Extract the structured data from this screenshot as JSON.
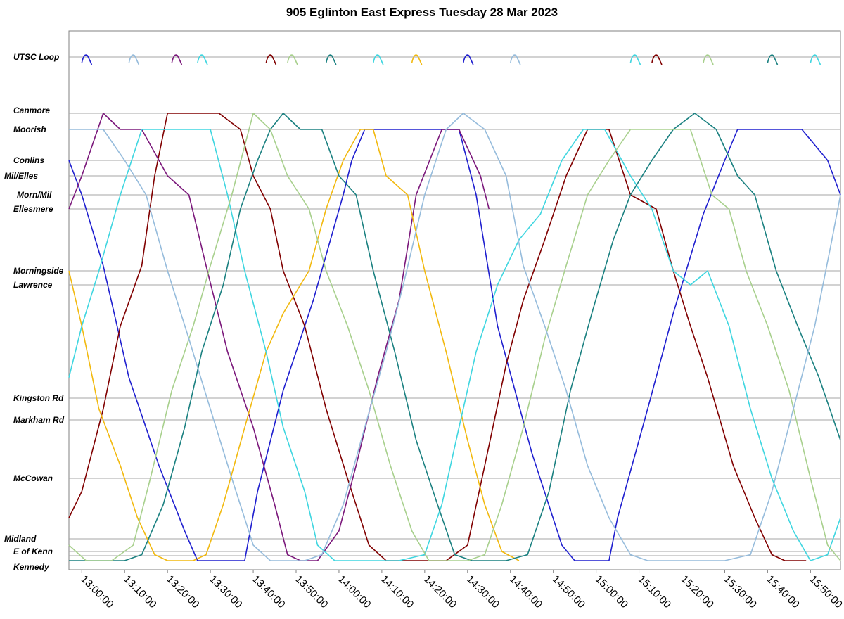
{
  "chart_data": {
    "type": "line",
    "title": "905 Eglinton East Express Tuesday 28 Mar 2023",
    "xlabel": "",
    "ylabel": "",
    "xlim": [
      "12:57:00",
      "15:57:00"
    ],
    "x_ticks": [
      "13:00:00",
      "13:10:00",
      "13:20:00",
      "13:30:00",
      "13:40:00",
      "13:50:00",
      "14:00:00",
      "14:10:00",
      "14:20:00",
      "14:30:00",
      "14:40:00",
      "14:50:00",
      "15:00:00",
      "15:10:00",
      "15:20:00",
      "15:30:00",
      "15:40:00",
      "15:50:00"
    ],
    "stops": [
      {
        "name": "UTSC Loop",
        "km": 15.6
      },
      {
        "name": "Canmore",
        "km": 13.9
      },
      {
        "name": "Moorish",
        "km": 13.6
      },
      {
        "name": "Conlins",
        "km": 13.0
      },
      {
        "name": "Mil/Elles",
        "km": 12.8
      },
      {
        "name": "Morn/Mil",
        "km": 12.4
      },
      {
        "name": "Ellesmere",
        "km": 12.1
      },
      {
        "name": "Morningside",
        "km": 10.9
      },
      {
        "name": "Lawrence",
        "km": 10.6
      },
      {
        "name": "Kingston Rd",
        "km": 6.2
      },
      {
        "name": "Markham Rd",
        "km": 5.8
      },
      {
        "name": "McCowan",
        "km": 3.5
      },
      {
        "name": "Midland",
        "km": 1.2
      },
      {
        "name": "E of Kenn",
        "km": 0.8
      },
      {
        "name": "Kennedy",
        "km": 0.4
      }
    ],
    "grid": true,
    "legend": "none",
    "series": [
      {
        "color": "#1f1fcf",
        "points": [
          [
            "12:57",
            "13.0"
          ],
          [
            "13:00",
            "12.4"
          ],
          [
            "13:05",
            "11.0"
          ],
          [
            "13:11",
            "7.0"
          ],
          [
            "13:18",
            "4.0"
          ],
          [
            "13:24",
            "1.5"
          ],
          [
            "13:27",
            "0.0"
          ],
          [
            "13:31",
            "0.0"
          ],
          [
            "13:38",
            "0.0"
          ],
          [
            "13:41",
            "3.0"
          ],
          [
            "13:47",
            "6.5"
          ],
          [
            "13:54",
            "10.0"
          ],
          [
            "14:01",
            "12.4"
          ],
          [
            "14:03",
            "13.0"
          ],
          [
            "14:06",
            "13.6"
          ],
          [
            "14:13",
            "13.6"
          ],
          [
            "14:18",
            "13.6"
          ],
          [
            "14:28",
            "13.6"
          ],
          [
            "14:32",
            "12.4"
          ],
          [
            "14:37",
            "9.0"
          ],
          [
            "14:45",
            "4.5"
          ],
          [
            "14:52",
            "1.0"
          ],
          [
            "14:55",
            "0.0"
          ],
          [
            "15:03",
            "0.0"
          ],
          [
            "15:05",
            "2.0"
          ],
          [
            "15:12",
            "6.0"
          ],
          [
            "15:18",
            "9.5"
          ],
          [
            "15:25",
            "12.0"
          ],
          [
            "15:30",
            "13.0"
          ],
          [
            "15:33",
            "13.6"
          ],
          [
            "15:40",
            "13.6"
          ],
          [
            "15:48",
            "13.6"
          ],
          [
            "15:54",
            "13.0"
          ],
          [
            "15:57",
            "12.4"
          ]
        ]
      },
      {
        "color": "#800000",
        "points": [
          [
            "12:57",
            "2.0"
          ],
          [
            "13:00",
            "3.0"
          ],
          [
            "13:05",
            "6.0"
          ],
          [
            "13:09",
            "9.0"
          ],
          [
            "13:14",
            "11.0"
          ],
          [
            "13:17",
            "12.8"
          ],
          [
            "13:20",
            "13.9"
          ],
          [
            "13:25",
            "13.9"
          ],
          [
            "13:32",
            "13.9"
          ],
          [
            "13:37",
            "13.6"
          ],
          [
            "13:40",
            "12.8"
          ],
          [
            "13:44",
            "12.1"
          ],
          [
            "13:47",
            "10.9"
          ],
          [
            "13:52",
            "9.0"
          ],
          [
            "13:57",
            "6.0"
          ],
          [
            "14:02",
            "3.5"
          ],
          [
            "14:07",
            "1.0"
          ],
          [
            "14:11",
            "0.0"
          ],
          [
            "14:19",
            "0.0"
          ],
          [
            "14:25",
            "0.0"
          ],
          [
            "14:30",
            "1.0"
          ],
          [
            "14:34",
            "4.0"
          ],
          [
            "14:39",
            "7.5"
          ],
          [
            "14:43",
            "10.0"
          ],
          [
            "14:48",
            "11.5"
          ],
          [
            "14:53",
            "12.8"
          ],
          [
            "14:58",
            "13.6"
          ],
          [
            "15:03",
            "13.6"
          ],
          [
            "15:08",
            "12.4"
          ],
          [
            "15:14",
            "12.1"
          ],
          [
            "15:18",
            "10.9"
          ],
          [
            "15:22",
            "9.0"
          ],
          [
            "15:26",
            "7.0"
          ],
          [
            "15:32",
            "4.0"
          ],
          [
            "15:37",
            "2.0"
          ],
          [
            "15:41",
            "0.5"
          ],
          [
            "15:44",
            "0.0"
          ],
          [
            "15:49",
            "0.0"
          ]
        ]
      },
      {
        "color": "#7b187b",
        "points": [
          [
            "12:57",
            "12.1"
          ],
          [
            "13:00",
            "12.8"
          ],
          [
            "13:05",
            "13.9"
          ],
          [
            "13:09",
            "13.6"
          ],
          [
            "13:14",
            "13.6"
          ],
          [
            "13:20",
            "12.8"
          ],
          [
            "13:25",
            "12.4"
          ],
          [
            "13:29",
            "11.0"
          ],
          [
            "13:34",
            "8.0"
          ],
          [
            "13:40",
            "5.5"
          ],
          [
            "13:45",
            "2.5"
          ],
          [
            "13:48",
            "0.5"
          ],
          [
            "13:51",
            "0.0"
          ],
          [
            "13:55",
            "0.0"
          ],
          [
            "14:00",
            "1.5"
          ],
          [
            "14:04",
            "4.0"
          ],
          [
            "14:09",
            "7.0"
          ],
          [
            "14:14",
            "10.0"
          ],
          [
            "14:18",
            "12.4"
          ],
          [
            "14:24",
            "13.6"
          ],
          [
            "14:28",
            "13.6"
          ],
          [
            "14:33",
            "12.8"
          ],
          [
            "14:35",
            "12.1"
          ]
        ]
      },
      {
        "color": "#f2b90f",
        "points": [
          [
            "12:57",
            "10.9"
          ],
          [
            "13:00",
            "9.0"
          ],
          [
            "13:04",
            "6.0"
          ],
          [
            "13:09",
            "4.0"
          ],
          [
            "13:13",
            "2.0"
          ],
          [
            "13:17",
            "0.5"
          ],
          [
            "13:20",
            "0.0"
          ],
          [
            "13:26",
            "0.0"
          ],
          [
            "13:29",
            "0.5"
          ],
          [
            "13:33",
            "2.5"
          ],
          [
            "13:38",
            "5.5"
          ],
          [
            "13:43",
            "8.0"
          ],
          [
            "13:47",
            "9.5"
          ],
          [
            "13:53",
            "10.9"
          ],
          [
            "13:57",
            "12.1"
          ],
          [
            "14:01",
            "13.0"
          ],
          [
            "14:05",
            "13.6"
          ],
          [
            "14:08",
            "13.6"
          ],
          [
            "14:11",
            "12.8"
          ],
          [
            "14:16",
            "12.4"
          ],
          [
            "14:20",
            "10.9"
          ],
          [
            "14:25",
            "8.0"
          ],
          [
            "14:30",
            "5.0"
          ],
          [
            "14:34",
            "2.5"
          ],
          [
            "14:38",
            "0.8"
          ],
          [
            "14:42",
            "0.0"
          ]
        ]
      },
      {
        "color": "#3fd6e0",
        "points": [
          [
            "12:57",
            "7.0"
          ],
          [
            "13:00",
            "9.0"
          ],
          [
            "13:04",
            "10.9"
          ],
          [
            "13:09",
            "12.4"
          ],
          [
            "13:14",
            "13.6"
          ],
          [
            "13:20",
            "13.6"
          ],
          [
            "13:25",
            "13.6"
          ],
          [
            "13:30",
            "13.6"
          ],
          [
            "13:34",
            "12.4"
          ],
          [
            "13:38",
            "10.9"
          ],
          [
            "13:43",
            "8.0"
          ],
          [
            "13:47",
            "5.5"
          ],
          [
            "13:52",
            "3.0"
          ],
          [
            "13:55",
            "1.0"
          ],
          [
            "13:59",
            "0.0"
          ],
          [
            "14:06",
            "0.0"
          ],
          [
            "14:14",
            "0.0"
          ],
          [
            "14:20",
            "0.5"
          ],
          [
            "14:24",
            "2.5"
          ],
          [
            "14:28",
            "5.5"
          ],
          [
            "14:32",
            "8.0"
          ],
          [
            "14:37",
            "10.6"
          ],
          [
            "14:42",
            "11.5"
          ],
          [
            "14:47",
            "12.0"
          ],
          [
            "14:52",
            "13.0"
          ],
          [
            "14:57",
            "13.6"
          ],
          [
            "15:02",
            "13.6"
          ],
          [
            "15:08",
            "12.8"
          ],
          [
            "15:13",
            "12.1"
          ],
          [
            "15:18",
            "10.9"
          ],
          [
            "15:22",
            "10.6"
          ],
          [
            "15:26",
            "10.9"
          ],
          [
            "15:31",
            "9.0"
          ],
          [
            "15:36",
            "6.0"
          ],
          [
            "15:41",
            "3.5"
          ],
          [
            "15:46",
            "1.5"
          ],
          [
            "15:50",
            "0.0"
          ],
          [
            "15:54",
            "0.5"
          ],
          [
            "15:57",
            "2.0"
          ]
        ]
      },
      {
        "color": "#1a8080",
        "points": [
          [
            "12:57",
            "0.0"
          ],
          [
            "13:01",
            "0.0"
          ],
          [
            "13:05",
            "0.0"
          ],
          [
            "13:10",
            "0.0"
          ],
          [
            "13:14",
            "0.5"
          ],
          [
            "13:19",
            "2.5"
          ],
          [
            "13:24",
            "5.5"
          ],
          [
            "13:28",
            "8.0"
          ],
          [
            "13:33",
            "10.6"
          ],
          [
            "13:37",
            "12.1"
          ],
          [
            "13:41",
            "13.0"
          ],
          [
            "13:44",
            "13.6"
          ],
          [
            "13:47",
            "13.9"
          ],
          [
            "13:51",
            "13.6"
          ],
          [
            "13:56",
            "13.6"
          ],
          [
            "14:00",
            "12.8"
          ],
          [
            "14:04",
            "12.4"
          ],
          [
            "14:08",
            "10.9"
          ],
          [
            "14:13",
            "8.0"
          ],
          [
            "14:18",
            "5.0"
          ],
          [
            "14:23",
            "2.5"
          ],
          [
            "14:27",
            "0.5"
          ],
          [
            "14:31",
            "0.0"
          ],
          [
            "14:39",
            "0.0"
          ],
          [
            "14:44",
            "0.5"
          ],
          [
            "14:49",
            "3.0"
          ],
          [
            "14:54",
            "6.5"
          ],
          [
            "14:59",
            "9.5"
          ],
          [
            "15:04",
            "11.5"
          ],
          [
            "15:08",
            "12.4"
          ],
          [
            "15:13",
            "13.0"
          ],
          [
            "15:18",
            "13.6"
          ],
          [
            "15:23",
            "13.9"
          ],
          [
            "15:28",
            "13.6"
          ],
          [
            "15:33",
            "12.8"
          ],
          [
            "15:37",
            "12.4"
          ],
          [
            "15:42",
            "10.9"
          ],
          [
            "15:47",
            "9.0"
          ],
          [
            "15:52",
            "7.0"
          ],
          [
            "15:57",
            "5.0"
          ]
        ]
      },
      {
        "color": "#a8d08d",
        "points": [
          [
            "12:57",
            "1.0"
          ],
          [
            "13:01",
            "0.0"
          ],
          [
            "13:07",
            "0.0"
          ],
          [
            "13:12",
            "1.0"
          ],
          [
            "13:16",
            "3.5"
          ],
          [
            "13:21",
            "6.5"
          ],
          [
            "13:26",
            "9.0"
          ],
          [
            "13:30",
            "11.0"
          ],
          [
            "13:35",
            "12.4"
          ],
          [
            "13:40",
            "13.9"
          ],
          [
            "13:44",
            "13.6"
          ],
          [
            "13:48",
            "12.8"
          ],
          [
            "13:53",
            "12.1"
          ],
          [
            "13:57",
            "10.9"
          ],
          [
            "14:02",
            "9.0"
          ],
          [
            "14:07",
            "6.5"
          ],
          [
            "14:12",
            "4.0"
          ],
          [
            "14:17",
            "1.5"
          ],
          [
            "14:21",
            "0.0"
          ],
          [
            "14:30",
            "0.0"
          ],
          [
            "14:34",
            "0.5"
          ],
          [
            "14:38",
            "2.5"
          ],
          [
            "14:43",
            "5.5"
          ],
          [
            "14:48",
            "8.5"
          ],
          [
            "14:53",
            "11.0"
          ],
          [
            "14:58",
            "12.4"
          ],
          [
            "15:03",
            "13.0"
          ],
          [
            "15:08",
            "13.6"
          ],
          [
            "15:15",
            "13.6"
          ],
          [
            "15:22",
            "13.6"
          ],
          [
            "15:27",
            "12.4"
          ],
          [
            "15:31",
            "12.1"
          ],
          [
            "15:35",
            "10.9"
          ],
          [
            "15:40",
            "9.0"
          ],
          [
            "15:45",
            "6.5"
          ],
          [
            "15:50",
            "3.5"
          ],
          [
            "15:54",
            "1.0"
          ],
          [
            "15:57",
            "0.0"
          ]
        ]
      },
      {
        "color": "#96bcdc",
        "points": [
          [
            "12:57",
            "13.6"
          ],
          [
            "13:01",
            "13.6"
          ],
          [
            "13:05",
            "13.6"
          ],
          [
            "13:10",
            "13.0"
          ],
          [
            "13:15",
            "12.4"
          ],
          [
            "13:20",
            "10.9"
          ],
          [
            "13:25",
            "8.5"
          ],
          [
            "13:30",
            "6.0"
          ],
          [
            "13:35",
            "3.5"
          ],
          [
            "13:40",
            "1.0"
          ],
          [
            "13:44",
            "0.0"
          ],
          [
            "13:52",
            "0.0"
          ],
          [
            "13:56",
            "0.5"
          ],
          [
            "14:01",
            "2.5"
          ],
          [
            "14:06",
            "5.5"
          ],
          [
            "14:11",
            "8.0"
          ],
          [
            "14:15",
            "10.6"
          ],
          [
            "14:20",
            "12.4"
          ],
          [
            "14:25",
            "13.6"
          ],
          [
            "14:29",
            "13.9"
          ],
          [
            "14:34",
            "13.6"
          ],
          [
            "14:39",
            "12.8"
          ],
          [
            "14:43",
            "11.0"
          ],
          [
            "14:48",
            "9.0"
          ],
          [
            "14:53",
            "6.5"
          ],
          [
            "14:58",
            "4.0"
          ],
          [
            "15:03",
            "2.0"
          ],
          [
            "15:08",
            "0.5"
          ],
          [
            "15:12",
            "0.0"
          ],
          [
            "15:20",
            "0.0"
          ],
          [
            "15:30",
            "0.0"
          ],
          [
            "15:36",
            "0.5"
          ],
          [
            "15:41",
            "3.0"
          ],
          [
            "15:46",
            "6.0"
          ],
          [
            "15:51",
            "9.0"
          ],
          [
            "15:55",
            "11.5"
          ],
          [
            "15:57",
            "12.4"
          ]
        ]
      }
    ]
  }
}
